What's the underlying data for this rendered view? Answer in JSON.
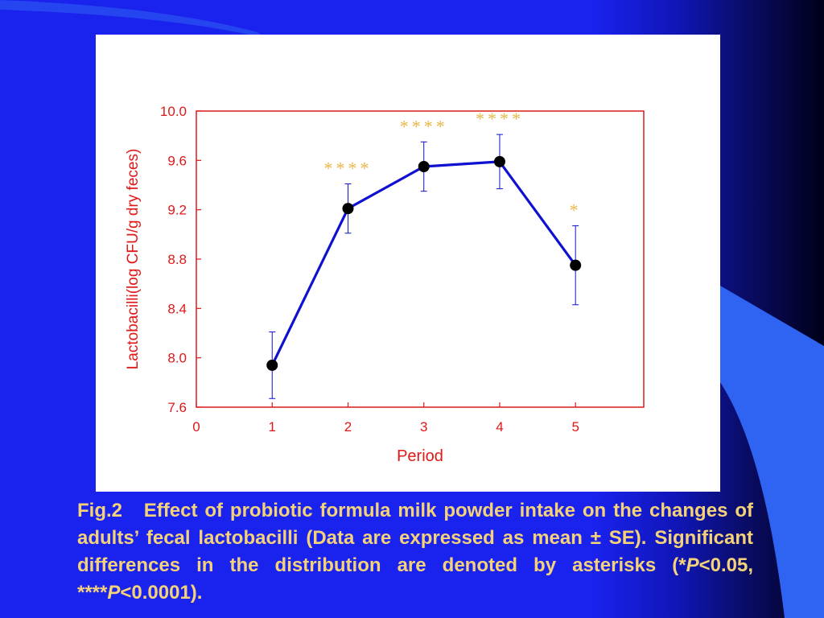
{
  "slide": {
    "background_color": "#1a22ee",
    "accent_color": "#2f63f2",
    "caption_color": "#f4d27a"
  },
  "caption": {
    "fig_label": "Fig.2",
    "text_1": "Effect of probiotic formula milk powder intake on the changes of adults’ fecal lactobacilli (Data are expressed as mean ± SE). Significant differences in the distribution are denoted by asterisks (*",
    "p_symbol_1": "P",
    "text_2": "<0.05, ****",
    "p_symbol_2": "P",
    "text_3": "<0.0001)."
  },
  "chart_data": {
    "type": "line",
    "title": "",
    "xlabel": "Period",
    "ylabel": "Lactobacilli(log CFU/g dry feces)",
    "xlim": [
      0,
      5.9
    ],
    "ylim": [
      7.6,
      10.0
    ],
    "x_ticks": [
      0,
      1,
      2,
      3,
      4,
      5
    ],
    "y_ticks": [
      7.6,
      8.0,
      8.4,
      8.8,
      9.2,
      9.6,
      10.0
    ],
    "y_tick_labels": [
      "7.6",
      "8.0",
      "8.4",
      "8.8",
      "9.2",
      "9.6",
      "10.0"
    ],
    "grid": false,
    "axis_color": "#e01818",
    "series": [
      {
        "color": "#1010d0",
        "x": [
          1,
          2,
          3,
          4,
          5
        ],
        "y": [
          7.94,
          9.21,
          9.55,
          9.59,
          8.75
        ],
        "error": [
          0.27,
          0.2,
          0.2,
          0.22,
          0.32
        ],
        "significance": [
          "",
          "****",
          "****",
          "****",
          "*"
        ]
      }
    ],
    "significance_color": "#e8b84a"
  }
}
